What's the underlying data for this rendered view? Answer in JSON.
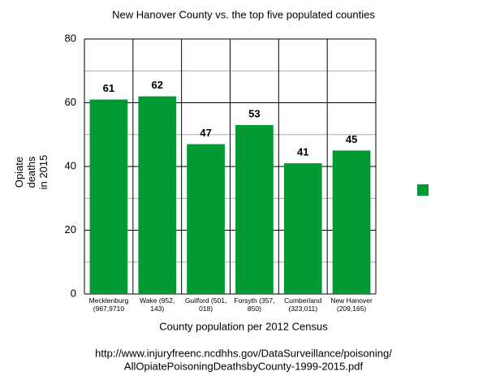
{
  "chart_data": {
    "type": "bar",
    "title": "New Hanover County vs. the top five populated counties",
    "y_label": "Opiate deaths in 2015",
    "x_label": "County population per 2012 Census",
    "source": [
      "http://www.injuryfreenc.ncdhhs.gov/DataSurveillance/poisoning/",
      "AllOpiatePoisoningDeathsbyCounty-1999-2015.pdf"
    ],
    "categories": [
      "Mecklenburg (967,9710",
      "Wake (952, 143)",
      "Guilford (501, 018)",
      "Forsyth (357, 850)",
      "Cumberland (323,011)",
      "New Hanover (209,165)"
    ],
    "values": [
      61,
      62,
      47,
      53,
      41,
      45
    ],
    "color": "#009933",
    "ylim": [
      0,
      80
    ],
    "yticks": [
      0,
      20,
      40,
      60,
      80
    ],
    "minor_grid": [
      10,
      30,
      50,
      70
    ],
    "grid": true
  }
}
